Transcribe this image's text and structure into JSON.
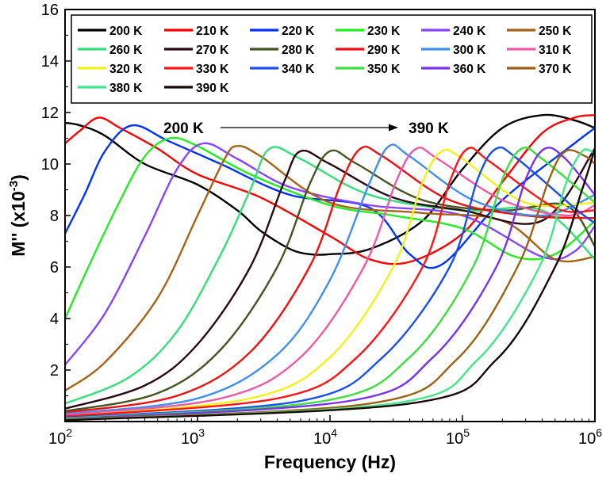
{
  "chart_data": {
    "type": "line",
    "title": "",
    "xlabel": "Frequency (Hz)",
    "ylabel_main": "M'' (x10",
    "ylabel_sup": "-3",
    "ylabel_close": ")",
    "x_scale": "log",
    "xlim": [
      100,
      1000000
    ],
    "ylim": [
      0,
      16
    ],
    "grid": false,
    "legend_position": "top",
    "y_ticks": [
      {
        "v": 0,
        "label": ""
      },
      {
        "v": 2,
        "label": "2"
      },
      {
        "v": 4,
        "label": "4"
      },
      {
        "v": 6,
        "label": "6"
      },
      {
        "v": 8,
        "label": "8"
      },
      {
        "v": 10,
        "label": "10"
      },
      {
        "v": 12,
        "label": "12"
      },
      {
        "v": 14,
        "label": "14"
      },
      {
        "v": 16,
        "label": "16"
      }
    ],
    "x_ticks": [
      {
        "exp": 2,
        "base": "10",
        "sup": "2"
      },
      {
        "exp": 3,
        "base": "10",
        "sup": "3"
      },
      {
        "exp": 4,
        "base": "10",
        "sup": "4"
      },
      {
        "exp": 5,
        "base": "10",
        "sup": "5"
      },
      {
        "exp": 6,
        "base": "10",
        "sup": "6"
      }
    ],
    "annotations": {
      "start": "200 K",
      "end": "390 K"
    },
    "series": [
      {
        "name": "200 K",
        "color": "#000000",
        "points": [
          [
            100,
            11.6
          ],
          [
            130,
            11.5
          ],
          [
            200,
            11.1
          ],
          [
            400,
            10.0
          ],
          [
            1000,
            9.2
          ],
          [
            2000,
            8.2
          ],
          [
            3000,
            7.4
          ],
          [
            5000,
            6.7
          ],
          [
            7000,
            6.5
          ],
          [
            10000,
            6.5
          ],
          [
            20000,
            6.7
          ],
          [
            50000,
            7.8
          ],
          [
            100000,
            9.8
          ],
          [
            200000,
            11.4
          ],
          [
            400000,
            11.9
          ],
          [
            700000,
            11.7
          ],
          [
            1000000,
            11.4
          ]
        ]
      },
      {
        "name": "210 K",
        "color": "#ff0000",
        "points": [
          [
            100,
            10.8
          ],
          [
            130,
            11.3
          ],
          [
            180,
            11.8
          ],
          [
            260,
            11.4
          ],
          [
            500,
            10.6
          ],
          [
            1000,
            9.6
          ],
          [
            3000,
            8.7
          ],
          [
            10000,
            7.2
          ],
          [
            20000,
            6.3
          ],
          [
            40000,
            6.2
          ],
          [
            100000,
            7.3
          ],
          [
            200000,
            9.3
          ],
          [
            400000,
            11.2
          ],
          [
            700000,
            11.8
          ],
          [
            1000000,
            11.9
          ]
        ]
      },
      {
        "name": "220 K",
        "color": "#0033ff",
        "points": [
          [
            100,
            7.3
          ],
          [
            140,
            8.8
          ],
          [
            200,
            10.5
          ],
          [
            320,
            11.5
          ],
          [
            600,
            10.9
          ],
          [
            1500,
            10.0
          ],
          [
            5000,
            8.8
          ],
          [
            20000,
            8.3
          ],
          [
            40000,
            6.5
          ],
          [
            70000,
            6.1
          ],
          [
            200000,
            8.6
          ],
          [
            700000,
            10.8
          ],
          [
            1000000,
            11.4
          ]
        ]
      },
      {
        "name": "230 K",
        "color": "#22ee22",
        "points": [
          [
            100,
            4.0
          ],
          [
            150,
            6.0
          ],
          [
            250,
            8.4
          ],
          [
            400,
            10.3
          ],
          [
            620,
            11.0
          ],
          [
            1000,
            10.7
          ],
          [
            2500,
            9.6
          ],
          [
            10000,
            8.4
          ],
          [
            30000,
            8.0
          ],
          [
            100000,
            7.5
          ],
          [
            250000,
            6.4
          ],
          [
            500000,
            6.5
          ],
          [
            1000000,
            7.8
          ]
        ]
      },
      {
        "name": "240 K",
        "color": "#8844ff",
        "points": [
          [
            100,
            2.2
          ],
          [
            200,
            4.2
          ],
          [
            400,
            7.2
          ],
          [
            700,
            9.8
          ],
          [
            1100,
            10.8
          ],
          [
            2000,
            10.2
          ],
          [
            5000,
            9.1
          ],
          [
            20000,
            8.4
          ],
          [
            100000,
            8.0
          ],
          [
            400000,
            6.4
          ],
          [
            700000,
            6.6
          ],
          [
            1000000,
            7.6
          ]
        ]
      },
      {
        "name": "250 K",
        "color": "#a86218",
        "points": [
          [
            100,
            1.2
          ],
          [
            200,
            2.3
          ],
          [
            500,
            4.8
          ],
          [
            1000,
            8.0
          ],
          [
            1600,
            10.2
          ],
          [
            2000,
            10.7
          ],
          [
            3000,
            10.3
          ],
          [
            10000,
            8.5
          ],
          [
            50000,
            8.1
          ],
          [
            200000,
            7.8
          ],
          [
            500000,
            6.3
          ],
          [
            1000000,
            6.4
          ]
        ]
      },
      {
        "name": "260 K",
        "color": "#33e07a",
        "points": [
          [
            100,
            0.7
          ],
          [
            300,
            1.7
          ],
          [
            700,
            3.5
          ],
          [
            1500,
            6.5
          ],
          [
            2500,
            9.0
          ],
          [
            3500,
            10.6
          ],
          [
            6000,
            10.2
          ],
          [
            20000,
            8.8
          ],
          [
            100000,
            8.2
          ],
          [
            400000,
            8.2
          ],
          [
            1000000,
            6.3
          ]
        ]
      },
      {
        "name": "270 K",
        "color": "#2a0a14",
        "points": [
          [
            100,
            0.5
          ],
          [
            400,
            1.4
          ],
          [
            1000,
            3.0
          ],
          [
            2500,
            6.0
          ],
          [
            4500,
            9.3
          ],
          [
            6000,
            10.5
          ],
          [
            10000,
            10.0
          ],
          [
            30000,
            8.7
          ],
          [
            100000,
            8.2
          ],
          [
            400000,
            7.8
          ],
          [
            1000000,
            10.6
          ]
        ]
      },
      {
        "name": "280 K",
        "color": "#445522",
        "points": [
          [
            100,
            0.4
          ],
          [
            500,
            1.1
          ],
          [
            1500,
            2.8
          ],
          [
            4000,
            6.0
          ],
          [
            7000,
            9.2
          ],
          [
            10000,
            10.5
          ],
          [
            16000,
            10.0
          ],
          [
            50000,
            8.6
          ],
          [
            200000,
            8.2
          ],
          [
            600000,
            8.4
          ],
          [
            1000000,
            6.8
          ]
        ]
      },
      {
        "name": "290 K",
        "color": "#ee1111",
        "points": [
          [
            100,
            0.35
          ],
          [
            700,
            1.0
          ],
          [
            2500,
            2.7
          ],
          [
            7000,
            6.0
          ],
          [
            12000,
            9.2
          ],
          [
            17000,
            10.6
          ],
          [
            25000,
            10.3
          ],
          [
            80000,
            8.6
          ],
          [
            300000,
            8.0
          ],
          [
            1000000,
            7.9
          ]
        ]
      },
      {
        "name": "300 K",
        "color": "#3f8fef",
        "points": [
          [
            100,
            0.3
          ],
          [
            1000,
            0.9
          ],
          [
            4000,
            2.6
          ],
          [
            10000,
            5.5
          ],
          [
            20000,
            9.3
          ],
          [
            28000,
            10.7
          ],
          [
            40000,
            10.3
          ],
          [
            120000,
            8.6
          ],
          [
            400000,
            8.0
          ],
          [
            1000000,
            8.8
          ]
        ]
      },
      {
        "name": "310 K",
        "color": "#ee5aa8",
        "points": [
          [
            100,
            0.25
          ],
          [
            1500,
            0.9
          ],
          [
            6000,
            2.5
          ],
          [
            18000,
            6.0
          ],
          [
            32000,
            9.4
          ],
          [
            45000,
            10.6
          ],
          [
            65000,
            10.2
          ],
          [
            200000,
            8.6
          ],
          [
            600000,
            8.0
          ],
          [
            1000000,
            8.4
          ]
        ]
      },
      {
        "name": "320 K",
        "color": "#f2f21a",
        "points": [
          [
            100,
            0.2
          ],
          [
            2500,
            0.9
          ],
          [
            10000,
            2.5
          ],
          [
            30000,
            6.0
          ],
          [
            50000,
            9.3
          ],
          [
            70000,
            10.5
          ],
          [
            100000,
            10.2
          ],
          [
            300000,
            8.5
          ],
          [
            1000000,
            8.5
          ]
        ]
      },
      {
        "name": "330 K",
        "color": "#ff1515",
        "points": [
          [
            100,
            0.2
          ],
          [
            4000,
            0.9
          ],
          [
            16000,
            2.5
          ],
          [
            50000,
            6.0
          ],
          [
            80000,
            9.3
          ],
          [
            110000,
            10.6
          ],
          [
            160000,
            10.1
          ],
          [
            500000,
            8.3
          ],
          [
            1000000,
            8.2
          ]
        ]
      },
      {
        "name": "340 K",
        "color": "#1a4ff0",
        "points": [
          [
            100,
            0.15
          ],
          [
            6000,
            0.8
          ],
          [
            25000,
            2.5
          ],
          [
            80000,
            6.0
          ],
          [
            130000,
            9.4
          ],
          [
            180000,
            10.6
          ],
          [
            260000,
            10.2
          ],
          [
            700000,
            8.3
          ],
          [
            1000000,
            7.7
          ]
        ]
      },
      {
        "name": "350 K",
        "color": "#3ddf3d",
        "points": [
          [
            100,
            0.12
          ],
          [
            9000,
            0.8
          ],
          [
            40000,
            2.5
          ],
          [
            120000,
            6.0
          ],
          [
            200000,
            9.4
          ],
          [
            280000,
            10.6
          ],
          [
            400000,
            10.2
          ],
          [
            1000000,
            8.5
          ]
        ]
      },
      {
        "name": "360 K",
        "color": "#7733ee",
        "points": [
          [
            100,
            0.1
          ],
          [
            14000,
            0.8
          ],
          [
            60000,
            2.5
          ],
          [
            180000,
            6.0
          ],
          [
            300000,
            9.4
          ],
          [
            420000,
            10.6
          ],
          [
            600000,
            10.2
          ],
          [
            1000000,
            8.8
          ]
        ]
      },
      {
        "name": "370 K",
        "color": "#9c6214",
        "points": [
          [
            100,
            0.08
          ],
          [
            20000,
            0.7
          ],
          [
            90000,
            2.4
          ],
          [
            260000,
            6.0
          ],
          [
            450000,
            9.4
          ],
          [
            600000,
            10.5
          ],
          [
            850000,
            10.3
          ],
          [
            1000000,
            10.0
          ]
        ]
      },
      {
        "name": "380 K",
        "color": "#40e88a",
        "points": [
          [
            100,
            0.06
          ],
          [
            30000,
            0.7
          ],
          [
            130000,
            2.4
          ],
          [
            380000,
            6.0
          ],
          [
            600000,
            9.2
          ],
          [
            800000,
            10.5
          ],
          [
            1000000,
            10.4
          ]
        ]
      },
      {
        "name": "390 K",
        "color": "#1a0808",
        "points": [
          [
            100,
            0.05
          ],
          [
            40000,
            0.7
          ],
          [
            180000,
            2.4
          ],
          [
            500000,
            6.0
          ],
          [
            800000,
            9.0
          ],
          [
            1000000,
            10.6
          ]
        ]
      }
    ]
  }
}
